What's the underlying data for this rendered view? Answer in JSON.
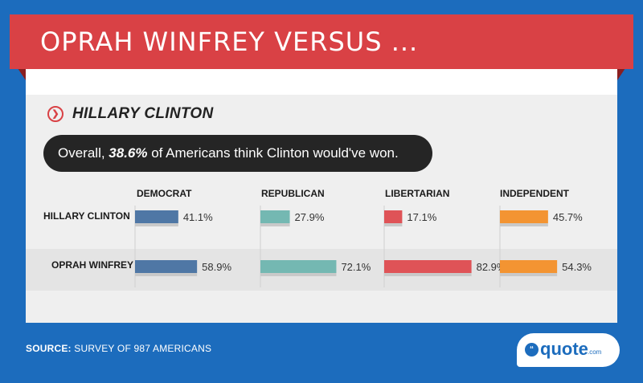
{
  "banner": {
    "title": "OPRAH WINFREY VERSUS ..."
  },
  "subject": {
    "icon": "chevron-right-circle-icon",
    "name": "HILLARY CLINTON"
  },
  "overall": {
    "prefix": "Overall, ",
    "percent": "38.6%",
    "suffix": " of Americans think Clinton would've won."
  },
  "chart_data": {
    "type": "bar",
    "categories": [
      "DEMOCRAT",
      "REPUBLICAN",
      "LIBERTARIAN",
      "INDEPENDENT"
    ],
    "series": [
      {
        "name": "HILLARY CLINTON",
        "values": [
          41.1,
          27.9,
          17.1,
          45.7
        ]
      },
      {
        "name": "OPRAH WINFREY",
        "values": [
          58.9,
          72.1,
          82.9,
          54.3
        ]
      }
    ],
    "value_labels": [
      [
        "41.1%",
        "27.9%",
        "17.1%",
        "45.7%"
      ],
      [
        "58.9%",
        "72.1%",
        "82.9%",
        "54.3%"
      ]
    ],
    "unit": "%",
    "colors": [
      "#4f77a5",
      "#74b8b2",
      "#df5357",
      "#f39432"
    ],
    "ylim": [
      0,
      100
    ]
  },
  "footer": {
    "source_label": "SOURCE:",
    "source_text": " SURVEY OF 987 AMERICANS"
  },
  "logo": {
    "icon": "quote-bubble-icon",
    "name": "quote",
    "suffix": ".com"
  }
}
